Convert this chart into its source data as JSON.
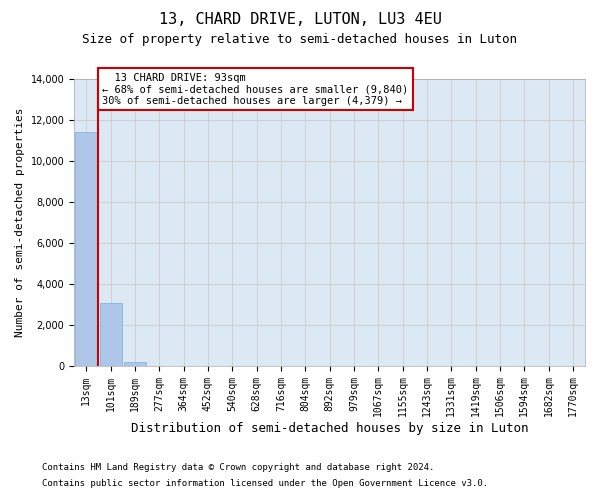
{
  "title": "13, CHARD DRIVE, LUTON, LU3 4EU",
  "subtitle": "Size of property relative to semi-detached houses in Luton",
  "xlabel": "Distribution of semi-detached houses by size in Luton",
  "ylabel": "Number of semi-detached properties",
  "annotation_line1": "13 CHARD DRIVE: 93sqm",
  "annotation_line2": "← 68% of semi-detached houses are smaller (9,840)",
  "annotation_line3": "30% of semi-detached houses are larger (4,379) →",
  "footer_line1": "Contains HM Land Registry data © Crown copyright and database right 2024.",
  "footer_line2": "Contains public sector information licensed under the Open Government Licence v3.0.",
  "bin_labels": [
    "13sqm",
    "101sqm",
    "189sqm",
    "277sqm",
    "364sqm",
    "452sqm",
    "540sqm",
    "628sqm",
    "716sqm",
    "804sqm",
    "892sqm",
    "979sqm",
    "1067sqm",
    "1155sqm",
    "1243sqm",
    "1331sqm",
    "1419sqm",
    "1506sqm",
    "1594sqm",
    "1682sqm",
    "1770sqm"
  ],
  "bar_values": [
    11400,
    3050,
    200,
    0,
    0,
    0,
    0,
    0,
    0,
    0,
    0,
    0,
    0,
    0,
    0,
    0,
    0,
    0,
    0,
    0,
    0
  ],
  "bar_color": "#aec6e8",
  "bar_edge_color": "#7aaed6",
  "ylim": [
    0,
    14000
  ],
  "yticks": [
    0,
    2000,
    4000,
    6000,
    8000,
    10000,
    12000,
    14000
  ],
  "grid_color": "#cccccc",
  "bg_color": "#dce9f5",
  "annotation_box_edge": "#cc0000",
  "annotation_box_face": "#ffffff",
  "red_line_color": "#cc0000",
  "title_fontsize": 11,
  "subtitle_fontsize": 9,
  "ylabel_fontsize": 8,
  "xlabel_fontsize": 9,
  "tick_fontsize": 7,
  "footer_fontsize": 6.5
}
